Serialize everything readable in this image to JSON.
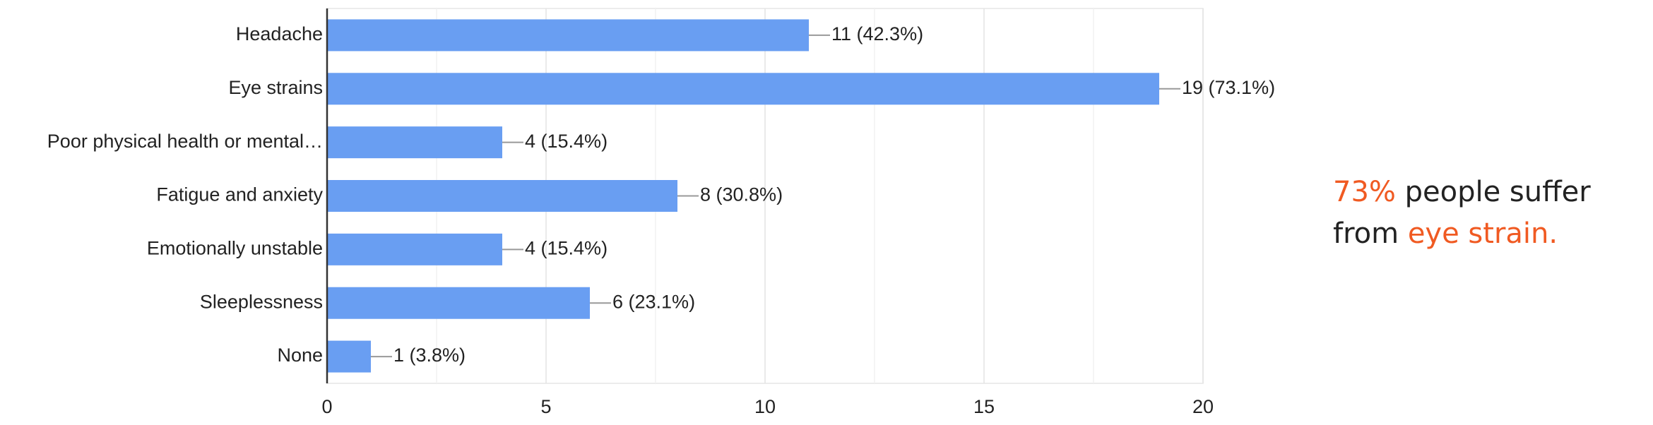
{
  "chart_data": {
    "type": "bar",
    "orientation": "horizontal",
    "categories": [
      "Headache",
      "Eye strains",
      "Poor physical health or mental…",
      "Fatigue and anxiety",
      "Emotionally unstable",
      "Sleeplessness",
      "None"
    ],
    "values": [
      11,
      19,
      4,
      8,
      4,
      6,
      1
    ],
    "value_labels": [
      "11 (42.3%)",
      "19 (73.1%)",
      "4 (15.4%)",
      "8 (30.8%)",
      "4 (15.4%)",
      "6 (23.1%)",
      "1 (3.8%)"
    ],
    "color": "#699ef2",
    "xlim": [
      0,
      20
    ],
    "xticks": [
      0,
      5,
      10,
      15,
      20
    ],
    "xminorticks": [
      2.5,
      7.5,
      12.5,
      17.5
    ],
    "grid": true,
    "annotation": [
      [
        {
          "text": "73%",
          "color": "#f05a22"
        },
        {
          "text": " people suffer",
          "color": "#222222"
        }
      ],
      [
        {
          "text": "from ",
          "color": "#222222"
        },
        {
          "text": "eye strain.",
          "color": "#f05a22"
        }
      ]
    ]
  }
}
